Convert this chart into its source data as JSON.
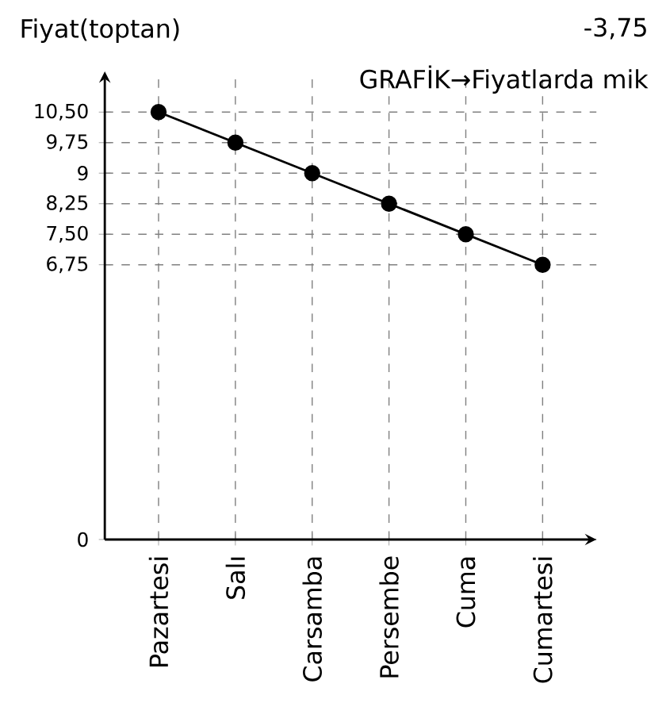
{
  "chart_data": {
    "type": "line",
    "ylabel": "Fiyat(toptan)",
    "annotations": [
      "-3,75",
      "GRAFİK→Fiyatlarda mik"
    ],
    "categories": [
      "Pazartesi",
      "Salı",
      "Carsamba",
      "Persembe",
      "Cuma",
      "Cumartesi"
    ],
    "series": [
      {
        "color": "#000000",
        "values": [
          10.5,
          9.75,
          9,
          8.25,
          7.5,
          6.75
        ]
      }
    ],
    "ylim": [
      0,
      11.5
    ],
    "yticks": [
      0,
      {
        "value": 6.75,
        "label": "6,75"
      },
      {
        "value": 7.5,
        "label": "7,50"
      },
      {
        "value": 8.25,
        "label": "8,25"
      },
      9,
      {
        "value": 9.75,
        "label": "9,75"
      },
      {
        "value": 10.5,
        "label": "10,50"
      }
    ],
    "grid": true,
    "marker": "circle",
    "line_style": "solid"
  }
}
